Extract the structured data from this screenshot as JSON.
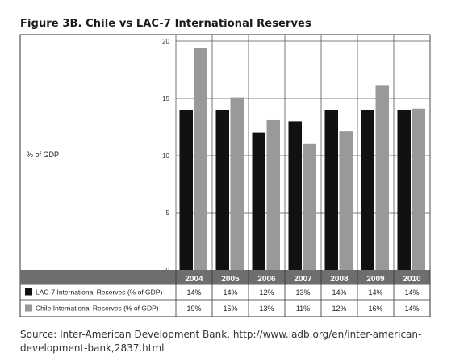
{
  "page": {
    "title": "Figure 3B. Chile vs LAC-7 International Reserves",
    "source_line1": "Source: Inter-American Development Bank. http://www.iadb.org/en/inter-american-",
    "source_line2": "development-bank,2837.html"
  },
  "chart_data": {
    "type": "bar",
    "title": "Figure 3B. Chile vs LAC-7 International Reserves",
    "ylabel": "% of GDP",
    "xlabel": "",
    "ylim": [
      0,
      20
    ],
    "yticks": [
      0,
      5,
      10,
      15,
      20
    ],
    "grid": true,
    "legend_placement": "bottom table",
    "categories": [
      "2004",
      "2005",
      "2006",
      "2007",
      "2008",
      "2009",
      "2010"
    ],
    "series": [
      {
        "name": "LAC-7 International Reserves (% of GDP)",
        "color": "#111111",
        "values": [
          14,
          14,
          12,
          13,
          14,
          14,
          14
        ],
        "labels": [
          "14%",
          "14%",
          "12%",
          "13%",
          "14%",
          "14%",
          "14%"
        ]
      },
      {
        "name": "Chile International Reserves (% of GDP)",
        "color": "#999999",
        "values": [
          19.4,
          15.1,
          13.1,
          11.0,
          12.1,
          16.1,
          14.1
        ],
        "labels": [
          "19%",
          "15%",
          "13%",
          "11%",
          "12%",
          "16%",
          "14%"
        ]
      }
    ]
  }
}
